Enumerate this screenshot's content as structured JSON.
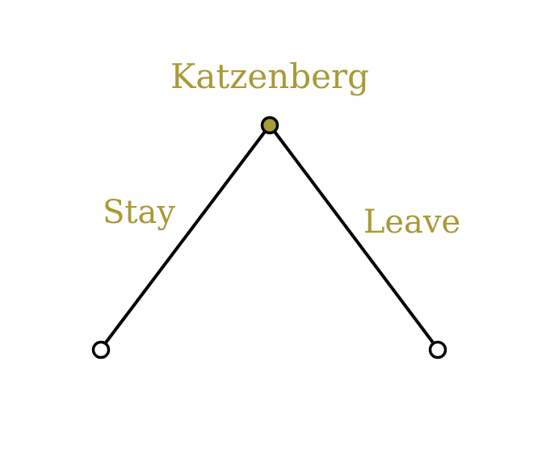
{
  "diagram": {
    "type": "game-tree",
    "root": {
      "label": "Katzenberg",
      "fill_color": "#a89a35"
    },
    "branches": [
      {
        "label": "Stay"
      },
      {
        "label": "Leave"
      }
    ],
    "leaf_fill_color": "#ffffff",
    "label_color": "#a89a35",
    "line_color": "#000000"
  }
}
